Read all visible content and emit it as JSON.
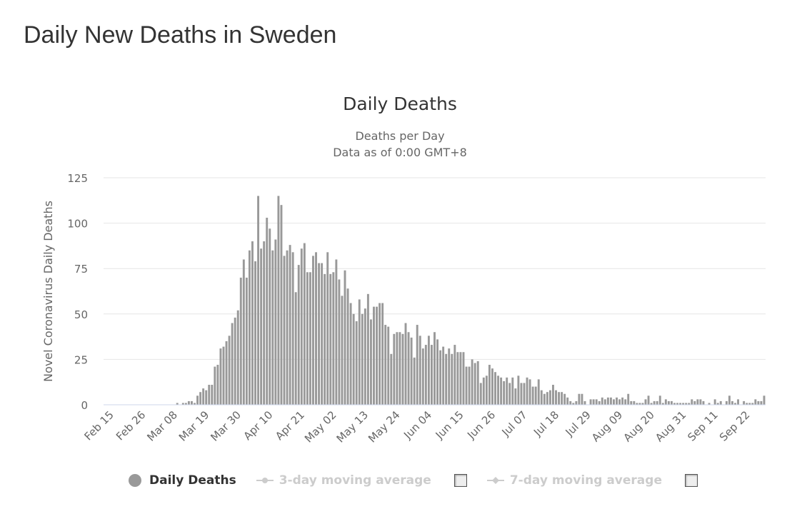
{
  "page": {
    "title": "Daily New Deaths in Sweden"
  },
  "legend": {
    "items": [
      {
        "label": "Daily Deaths",
        "active": true
      },
      {
        "label": "3-day moving average",
        "active": false
      },
      {
        "label": "7-day moving average",
        "active": false
      }
    ]
  },
  "colors": {
    "bar": "#999999",
    "grid": "#e6e6e6",
    "axis_text": "#666666",
    "title_text": "#333333",
    "legend_inactive": "#cccccc"
  },
  "chart_data": {
    "type": "bar",
    "title": "Daily Deaths",
    "subtitle": [
      "Deaths per Day",
      "Data as of 0:00 GMT+8"
    ],
    "ylabel": "Novel Coronavirus Daily Deaths",
    "xlabel": "",
    "ylim": [
      0,
      125
    ],
    "yticks": [
      0,
      25,
      50,
      75,
      100,
      125
    ],
    "grid": true,
    "legend_position": "bottom",
    "x_start": "Feb 15",
    "xtick_labels": [
      "Feb 15",
      "Feb 26",
      "Mar 08",
      "Mar 19",
      "Mar 30",
      "Apr 10",
      "Apr 21",
      "May 02",
      "May 13",
      "May 24",
      "Jun 04",
      "Jun 15",
      "Jun 26",
      "Jul 07",
      "Jul 18",
      "Jul 29",
      "Aug 09",
      "Aug 20",
      "Aug 31",
      "Sep 11",
      "Sep 22"
    ],
    "series": [
      {
        "name": "Daily Deaths",
        "values": [
          0,
          0,
          0,
          0,
          0,
          0,
          0,
          0,
          0,
          0,
          0,
          0,
          0,
          0,
          0,
          0,
          0,
          0,
          0,
          0,
          0,
          0,
          0,
          0,
          0,
          1,
          0,
          1,
          1,
          2,
          2,
          1,
          5,
          7,
          9,
          8,
          11,
          11,
          21,
          22,
          31,
          32,
          35,
          38,
          45,
          48,
          52,
          70,
          80,
          70,
          85,
          90,
          79,
          115,
          86,
          90,
          103,
          97,
          85,
          91,
          115,
          110,
          82,
          85,
          88,
          84,
          62,
          77,
          86,
          89,
          73,
          73,
          82,
          84,
          78,
          78,
          72,
          84,
          72,
          73,
          80,
          69,
          60,
          74,
          64,
          56,
          50,
          46,
          58,
          50,
          53,
          61,
          47,
          54,
          54,
          56,
          56,
          44,
          43,
          28,
          39,
          40,
          40,
          39,
          45,
          40,
          37,
          26,
          44,
          38,
          31,
          33,
          38,
          33,
          40,
          36,
          30,
          32,
          28,
          31,
          28,
          33,
          29,
          29,
          29,
          21,
          21,
          25,
          23,
          24,
          12,
          15,
          16,
          22,
          20,
          18,
          16,
          15,
          13,
          15,
          12,
          15,
          9,
          16,
          12,
          12,
          15,
          14,
          10,
          10,
          14,
          8,
          6,
          7,
          8,
          11,
          8,
          7,
          7,
          6,
          4,
          2,
          1,
          2,
          6,
          6,
          2,
          0,
          3,
          3,
          3,
          2,
          4,
          3,
          4,
          4,
          3,
          4,
          3,
          4,
          3,
          6,
          2,
          2,
          1,
          1,
          1,
          3,
          5,
          1,
          2,
          2,
          5,
          1,
          3,
          2,
          2,
          1,
          1,
          1,
          1,
          1,
          1,
          3,
          2,
          3,
          3,
          2,
          0,
          1,
          0,
          3,
          1,
          2,
          0,
          2,
          5,
          2,
          1,
          3,
          0,
          2,
          1,
          1,
          1,
          3,
          2,
          2,
          5
        ]
      }
    ]
  }
}
